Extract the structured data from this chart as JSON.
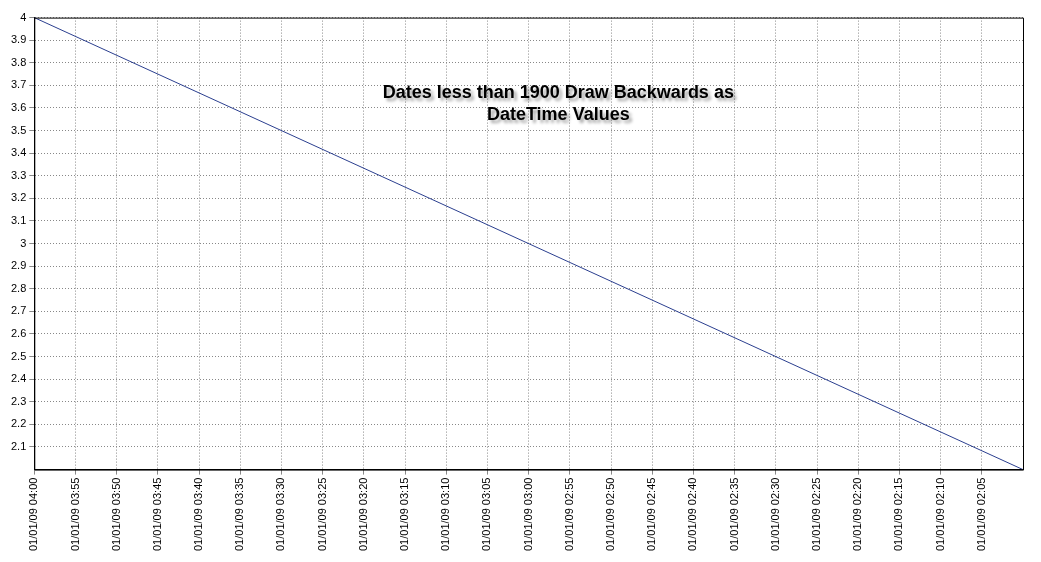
{
  "chart_data": {
    "type": "line",
    "x": [
      "--01-01T04:00",
      "--01-01T02:00"
    ],
    "series": [
      {
        "color": "#2b3f8f",
        "values": [
          4,
          2
        ]
      }
    ],
    "xlim": [
      "--01-01T04:00",
      "--01-01T02:00"
    ],
    "xticks": [
      {
        "value": "--01-01T04:00",
        "label": "01/01/09 04:00"
      },
      {
        "value": "--01-01T03:55",
        "label": "01/01/09 03:55"
      },
      {
        "value": "--01-01T03:50",
        "label": "01/01/09 03:50"
      },
      {
        "value": "--01-01T03:45",
        "label": "01/01/09 03:45"
      },
      {
        "value": "--01-01T03:40",
        "label": "01/01/09 03:40"
      },
      {
        "value": "--01-01T03:35",
        "label": "01/01/09 03:35"
      },
      {
        "value": "--01-01T03:30",
        "label": "01/01/09 03:30"
      },
      {
        "value": "--01-01T03:25",
        "label": "01/01/09 03:25"
      },
      {
        "value": "--01-01T03:20",
        "label": "01/01/09 03:20"
      },
      {
        "value": "--01-01T03:15",
        "label": "01/01/09 03:15"
      },
      {
        "value": "--01-01T03:10",
        "label": "01/01/09 03:10"
      },
      {
        "value": "--01-01T03:05",
        "label": "01/01/09 03:05"
      },
      {
        "value": "--01-01T03:00",
        "label": "01/01/09 03:00"
      },
      {
        "value": "--01-01T02:55",
        "label": "01/01/09 02:55"
      },
      {
        "value": "--01-01T02:50",
        "label": "01/01/09 02:50"
      },
      {
        "value": "--01-01T02:45",
        "label": "01/01/09 02:45"
      },
      {
        "value": "--01-01T02:40",
        "label": "01/01/09 02:40"
      },
      {
        "value": "--01-01T02:35",
        "label": "01/01/09 02:35"
      },
      {
        "value": "--01-01T02:30",
        "label": "01/01/09 02:30"
      },
      {
        "value": "--01-01T02:25",
        "label": "01/01/09 02:25"
      },
      {
        "value": "--01-01T02:20",
        "label": "01/01/09 02:20"
      },
      {
        "value": "--01-01T02:15",
        "label": "01/01/09 02:15"
      },
      {
        "value": "--01-01T02:10",
        "label": "01/01/09 02:10"
      },
      {
        "value": "--01-01T02:05",
        "label": "01/01/09 02:05"
      }
    ],
    "ylim": [
      2,
      4
    ],
    "yticks": [
      2.1,
      2.2,
      2.3,
      2.4,
      2.5,
      2.6,
      2.7,
      2.8,
      2.9,
      3,
      3.1,
      3.2,
      3.3,
      3.4,
      3.5,
      3.6,
      3.7,
      3.8,
      3.9,
      4
    ],
    "grid": true,
    "line_style": "solid",
    "marker": "none",
    "legend": false,
    "annotations": [
      "Dates less than 1900 Draw Backwards as DateTime Values"
    ]
  }
}
